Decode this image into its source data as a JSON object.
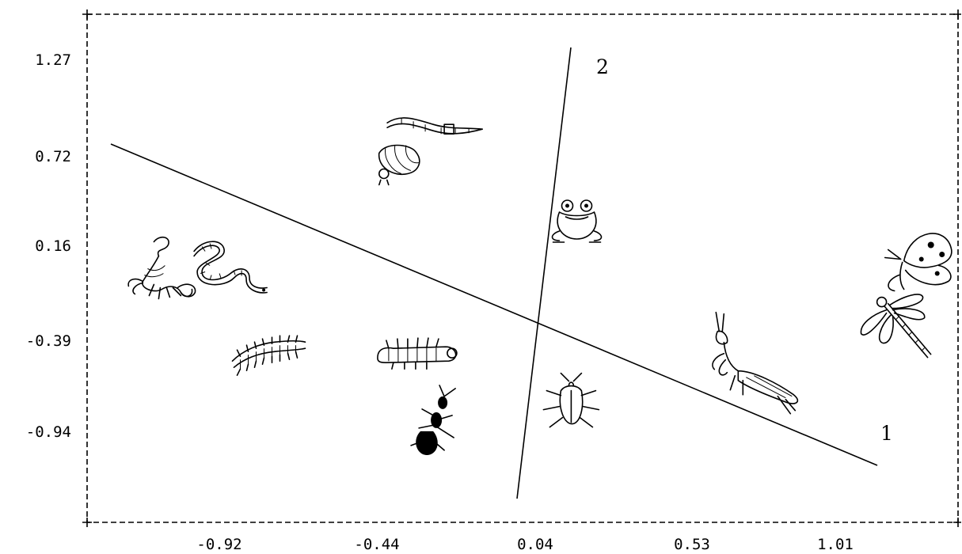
{
  "chart_data": {
    "type": "scatter",
    "title": "",
    "xlabel": "",
    "ylabel": "",
    "xlim": [
      -1.2,
      1.3
    ],
    "ylim": [
      -1.5,
      1.55
    ],
    "x_ticks": [
      "-0.92",
      "-0.44",
      "0.04",
      "0.53",
      "1.01"
    ],
    "y_ticks": [
      "1.27",
      "0.72",
      "0.16",
      "-0.39",
      "-0.94"
    ],
    "grid": false,
    "frame": "dashed",
    "axes": [
      {
        "label": "1",
        "from": [
          -1.17,
          0.8
        ],
        "to": [
          1.16,
          -1.12
        ]
      },
      {
        "label": "2",
        "from": [
          -0.03,
          -1.4
        ],
        "to": [
          0.13,
          1.4
        ]
      }
    ],
    "points": [
      {
        "icon": "worm-icon",
        "x": -0.25,
        "y": 0.86
      },
      {
        "icon": "grub-icon",
        "x": -0.35,
        "y": 0.68
      },
      {
        "icon": "frog-icon",
        "x": 0.2,
        "y": 0.32
      },
      {
        "icon": "scorpion-icon",
        "x": -1.1,
        "y": 0.05
      },
      {
        "icon": "snake-icon",
        "x": -0.9,
        "y": 0.05
      },
      {
        "icon": "millipede-icon",
        "x": -0.77,
        "y": -0.48
      },
      {
        "icon": "caterpillar-icon",
        "x": -0.3,
        "y": -0.48
      },
      {
        "icon": "ant-icon",
        "x": -0.26,
        "y": -0.85
      },
      {
        "icon": "bug-icon",
        "x": 0.18,
        "y": -0.75
      },
      {
        "icon": "mantis-icon",
        "x": 0.78,
        "y": -0.68
      },
      {
        "icon": "butterfly-icon",
        "x": 1.22,
        "y": 0.05
      },
      {
        "icon": "dragonfly-icon",
        "x": 1.2,
        "y": -0.28
      }
    ]
  }
}
